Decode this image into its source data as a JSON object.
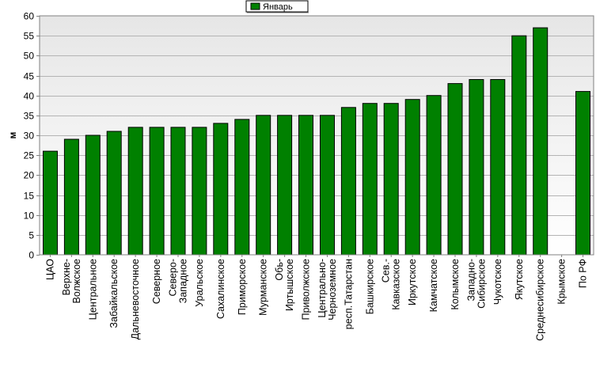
{
  "chart_data": {
    "type": "bar",
    "title": "",
    "xlabel": "",
    "ylabel": "м",
    "ylim": [
      0,
      60
    ],
    "ytick_step": 5,
    "grid": true,
    "legend_position": "top-center",
    "colors": {
      "bar": "#008000",
      "bar_stroke": "#000000",
      "grid": "#b4b4b4",
      "plot_top": "#e6e6e6",
      "plot_bottom": "#ffffff"
    },
    "categories": [
      "ЦАО",
      "Верхне-\nВолжское",
      "Центральное",
      "Забайкальское",
      "Дальневосточное",
      "Северное",
      "Северо-\nЗападное",
      "Уральское",
      "Сахалинское",
      "Приморское",
      "Мурманское",
      "Обь-\nИртышское",
      "Приволжское",
      "Центрально-\nЧерноземное",
      "респ.Татарстан",
      "Башкирское",
      "Сев.-\nКавказское",
      "Иркутское",
      "Камчатское",
      "Колымское",
      "Западно-\nСибирское",
      "Чукотское",
      "Якутское",
      "Среднесибирское",
      "Крымское",
      "По РФ"
    ],
    "series": [
      {
        "name": "Январь",
        "values": [
          26,
          29,
          30,
          31,
          32,
          32,
          32,
          32,
          33,
          34,
          35,
          35,
          35,
          35,
          37,
          38,
          38,
          39,
          40,
          43,
          44,
          44,
          55,
          57,
          null,
          41
        ]
      }
    ]
  }
}
